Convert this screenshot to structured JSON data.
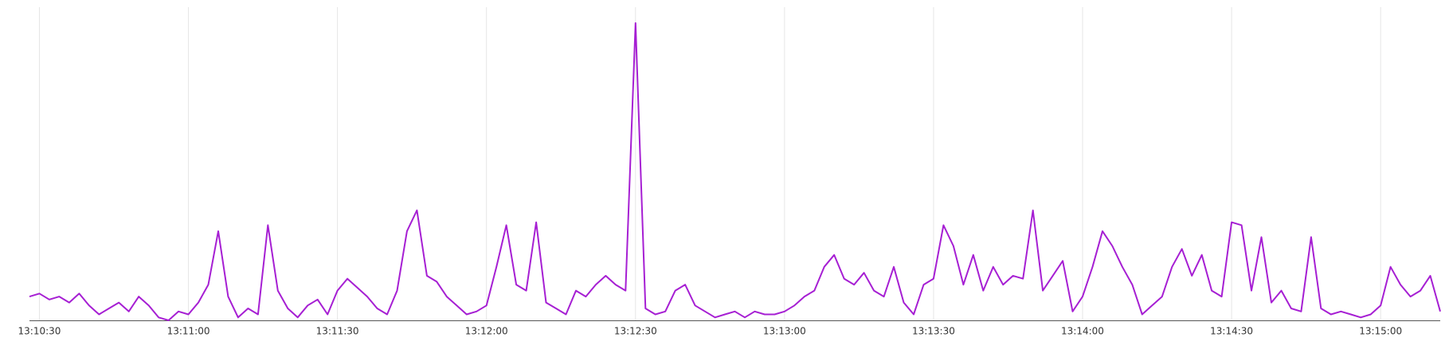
{
  "chart_data": {
    "type": "line",
    "x": [
      "13:10:28",
      "13:10:30",
      "13:10:32",
      "13:10:34",
      "13:10:36",
      "13:10:38",
      "13:10:40",
      "13:10:42",
      "13:10:44",
      "13:10:46",
      "13:10:48",
      "13:10:50",
      "13:10:52",
      "13:10:54",
      "13:10:56",
      "13:10:58",
      "13:11:00",
      "13:11:02",
      "13:11:04",
      "13:11:06",
      "13:11:08",
      "13:11:10",
      "13:11:12",
      "13:11:14",
      "13:11:16",
      "13:11:18",
      "13:11:20",
      "13:11:22",
      "13:11:24",
      "13:11:26",
      "13:11:28",
      "13:11:30",
      "13:11:32",
      "13:11:34",
      "13:11:36",
      "13:11:38",
      "13:11:40",
      "13:11:42",
      "13:11:44",
      "13:11:46",
      "13:11:48",
      "13:11:50",
      "13:11:52",
      "13:11:54",
      "13:11:56",
      "13:11:58",
      "13:12:00",
      "13:12:02",
      "13:12:04",
      "13:12:06",
      "13:12:08",
      "13:12:10",
      "13:12:12",
      "13:12:14",
      "13:12:16",
      "13:12:18",
      "13:12:20",
      "13:12:22",
      "13:12:24",
      "13:12:26",
      "13:12:28",
      "13:12:30",
      "13:12:32",
      "13:12:34",
      "13:12:36",
      "13:12:38",
      "13:12:40",
      "13:12:42",
      "13:12:44",
      "13:12:46",
      "13:12:48",
      "13:12:50",
      "13:12:52",
      "13:12:54",
      "13:12:56",
      "13:12:58",
      "13:13:00",
      "13:13:02",
      "13:13:04",
      "13:13:06",
      "13:13:08",
      "13:13:10",
      "13:13:12",
      "13:13:14",
      "13:13:16",
      "13:13:18",
      "13:13:20",
      "13:13:22",
      "13:13:24",
      "13:13:26",
      "13:13:28",
      "13:13:30",
      "13:13:32",
      "13:13:34",
      "13:13:36",
      "13:13:38",
      "13:13:40",
      "13:13:42",
      "13:13:44",
      "13:13:46",
      "13:13:48",
      "13:13:50",
      "13:13:52",
      "13:13:54",
      "13:13:56",
      "13:13:58",
      "13:14:00",
      "13:14:02",
      "13:14:04",
      "13:14:06",
      "13:14:08",
      "13:14:10",
      "13:14:12",
      "13:14:14",
      "13:14:16",
      "13:14:18",
      "13:14:20",
      "13:14:22",
      "13:14:24",
      "13:14:26",
      "13:14:28",
      "13:14:30",
      "13:14:32",
      "13:14:34",
      "13:14:36",
      "13:14:38",
      "13:14:40",
      "13:14:42",
      "13:14:44",
      "13:14:46",
      "13:14:48",
      "13:14:50",
      "13:14:52",
      "13:14:54",
      "13:14:56",
      "13:14:58",
      "13:15:00",
      "13:15:02",
      "13:15:04",
      "13:15:06",
      "13:15:08",
      "13:15:10",
      "13:15:12"
    ],
    "values": [
      8,
      9,
      7,
      8,
      6,
      9,
      5,
      2,
      4,
      6,
      3,
      8,
      5,
      1,
      0,
      3,
      2,
      6,
      12,
      30,
      8,
      1,
      4,
      2,
      32,
      10,
      4,
      1,
      5,
      7,
      2,
      10,
      14,
      11,
      8,
      4,
      2,
      10,
      30,
      37,
      15,
      13,
      8,
      5,
      2,
      3,
      5,
      18,
      32,
      12,
      10,
      33,
      6,
      4,
      2,
      10,
      8,
      12,
      15,
      12,
      10,
      100,
      4,
      2,
      3,
      10,
      12,
      5,
      3,
      1,
      2,
      3,
      1,
      3,
      2,
      2,
      3,
      5,
      8,
      10,
      18,
      22,
      14,
      12,
      16,
      10,
      8,
      18,
      6,
      2,
      12,
      14,
      32,
      25,
      12,
      22,
      10,
      18,
      12,
      15,
      14,
      37,
      10,
      15,
      20,
      3,
      8,
      18,
      30,
      25,
      18,
      12,
      2,
      5,
      8,
      18,
      24,
      15,
      22,
      10,
      8,
      33,
      32,
      10,
      28,
      6,
      10,
      4,
      3,
      28,
      4,
      2,
      3,
      2,
      1,
      2,
      5,
      18,
      12,
      8,
      10,
      15,
      3
    ],
    "color": "#a61fd3",
    "xlim": [
      "13:10:28",
      "13:15:12"
    ],
    "ylim": [
      0,
      100
    ],
    "xticks": [
      "13:10:30",
      "13:11:00",
      "13:11:30",
      "13:12:00",
      "13:12:30",
      "13:13:00",
      "13:13:30",
      "13:14:00",
      "13:14:30",
      "13:15:00"
    ],
    "grid": true
  }
}
